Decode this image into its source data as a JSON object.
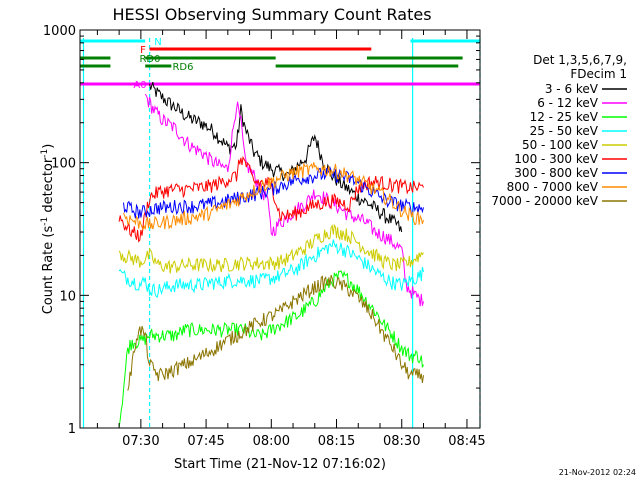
{
  "chart_data": {
    "type": "line",
    "title": "HESSI Observing Summary Count Rates",
    "xlabel": "Start Time (21-Nov-12 07:16:02)",
    "ylabel_main": "Count Rate (s",
    "ylabel_sup1": "-1",
    "ylabel_mid": " detector",
    "ylabel_sup2": "-1",
    "ylabel_end": ")",
    "y_scale": "log",
    "ylim": [
      1,
      1000
    ],
    "xlim_min": [
      16.0,
      108.0
    ],
    "x_ticks": [
      {
        "t": 30,
        "label": "07:30"
      },
      {
        "t": 45,
        "label": "07:45"
      },
      {
        "t": 60,
        "label": "08:00"
      },
      {
        "t": 75,
        "label": "08:15"
      },
      {
        "t": 90,
        "label": "08:30"
      },
      {
        "t": 105,
        "label": "08:45"
      }
    ],
    "y_ticks": [
      {
        "v": 1,
        "label": "1"
      },
      {
        "v": 10,
        "label": "10"
      },
      {
        "v": 100,
        "label": "100"
      },
      {
        "v": 1000,
        "label": "1000"
      }
    ],
    "legend_header": [
      "Det 1,3,5,6,7,9,",
      "FDecim 1"
    ],
    "legend_placement": "right",
    "series": [
      {
        "name": "3 - 6 keV",
        "color": "#000000",
        "x": [
          32,
          34,
          36,
          38,
          40,
          42,
          44,
          46,
          47,
          48,
          50,
          52,
          53,
          54,
          56,
          58,
          60,
          62,
          64,
          66,
          68,
          70,
          72,
          74,
          76,
          78,
          80,
          82,
          84,
          86,
          88,
          89,
          90
        ],
        "values": [
          380,
          330,
          290,
          260,
          230,
          210,
          200,
          180,
          170,
          155,
          130,
          135,
          250,
          180,
          120,
          100,
          90,
          85,
          80,
          95,
          110,
          160,
          100,
          80,
          70,
          62,
          55,
          50,
          45,
          40,
          36,
          34,
          30
        ]
      },
      {
        "name": "6 - 12 keV",
        "color": "#ff00ff",
        "x": [
          31,
          33,
          35,
          38,
          40,
          42,
          44,
          46,
          48,
          50,
          52,
          53,
          54,
          56,
          58,
          59,
          60,
          62,
          64,
          66,
          68,
          70,
          72,
          74,
          76,
          78,
          80,
          82,
          84,
          86,
          88,
          90,
          91,
          93,
          95
        ],
        "values": [
          320,
          250,
          210,
          180,
          150,
          130,
          120,
          105,
          95,
          90,
          280,
          200,
          100,
          80,
          60,
          55,
          30,
          35,
          40,
          45,
          50,
          60,
          55,
          50,
          45,
          40,
          38,
          35,
          30,
          28,
          25,
          22,
          12,
          10,
          9
        ]
      },
      {
        "name": "12 - 25 keV",
        "color": "#00ff00",
        "x": [
          25,
          26,
          27,
          28,
          30,
          32,
          34,
          36,
          38,
          40,
          42,
          44,
          46,
          48,
          50,
          52,
          54,
          56,
          58,
          60,
          62,
          64,
          66,
          68,
          70,
          72,
          74,
          76,
          78,
          80,
          82,
          84,
          86,
          88,
          90,
          92,
          94,
          95
        ],
        "values": [
          1,
          2,
          4,
          4.5,
          4.5,
          5,
          5,
          5,
          5,
          5.5,
          5.5,
          5.5,
          5.5,
          5.5,
          5.5,
          5.5,
          5.5,
          5,
          5,
          5.5,
          6,
          6.5,
          7,
          8,
          9,
          11,
          13,
          14,
          13,
          11,
          9,
          7.5,
          6,
          5,
          4,
          3.5,
          3.5,
          3
        ]
      },
      {
        "name": "25 - 50 keV",
        "color": "#00ffff",
        "x": [
          25,
          26,
          28,
          30,
          31,
          32,
          34,
          36,
          38,
          40,
          42,
          44,
          46,
          48,
          50,
          52,
          54,
          56,
          58,
          60,
          62,
          64,
          66,
          68,
          70,
          72,
          74,
          76,
          78,
          80,
          82,
          84,
          86,
          88,
          90,
          92,
          94,
          95
        ],
        "values": [
          15,
          14,
          13,
          12,
          13,
          11,
          11,
          11.5,
          12,
          12,
          12,
          12,
          12.5,
          12.5,
          13,
          13,
          13,
          13,
          13,
          13.5,
          14,
          15,
          16,
          18,
          20,
          22,
          24,
          23,
          21,
          19,
          17,
          15,
          13.5,
          12.5,
          12,
          13,
          14,
          15
        ]
      },
      {
        "name": "50 - 100 keV",
        "color": "#cccc00",
        "x": [
          25,
          26,
          28,
          30,
          32,
          34,
          36,
          38,
          40,
          42,
          44,
          46,
          48,
          50,
          52,
          54,
          56,
          58,
          60,
          62,
          64,
          66,
          68,
          70,
          72,
          74,
          76,
          78,
          80,
          82,
          84,
          86,
          88,
          90,
          92,
          94,
          95
        ],
        "values": [
          22,
          20,
          19,
          18,
          20,
          17,
          16.5,
          16.5,
          17,
          17,
          17,
          17,
          17,
          17,
          17.5,
          17.5,
          17.5,
          17.5,
          17.5,
          18,
          19,
          21,
          23,
          26,
          29,
          31,
          30,
          28,
          25,
          22,
          20,
          18,
          17,
          17,
          18,
          20,
          21
        ]
      },
      {
        "name": "100 - 300 keV",
        "color": "#ff0000",
        "x": [
          25,
          26,
          28,
          30,
          31,
          32,
          34,
          36,
          38,
          40,
          42,
          44,
          46,
          48,
          50,
          52,
          53,
          54,
          56,
          58,
          60,
          62,
          64,
          66,
          68,
          70,
          72,
          74,
          76,
          78,
          80,
          82,
          84,
          86,
          88,
          90,
          92,
          94,
          95
        ],
        "values": [
          40,
          35,
          30,
          28,
          40,
          55,
          60,
          62,
          63,
          63,
          64,
          65,
          67,
          70,
          75,
          80,
          110,
          100,
          72,
          70,
          70,
          40,
          40,
          42,
          45,
          48,
          50,
          52,
          50,
          48,
          65,
          70,
          72,
          70,
          68,
          66,
          65,
          65,
          65
        ]
      },
      {
        "name": "300 - 800 keV",
        "color": "#0000ff",
        "x": [
          26,
          28,
          30,
          32,
          34,
          36,
          38,
          40,
          42,
          44,
          46,
          48,
          50,
          52,
          54,
          56,
          58,
          60,
          62,
          64,
          66,
          68,
          70,
          72,
          74,
          76,
          78,
          80,
          82,
          84,
          86,
          88,
          90,
          92,
          94,
          95
        ],
        "values": [
          48,
          44,
          42,
          44,
          46,
          46,
          47,
          47,
          47,
          48,
          49,
          50,
          52,
          54,
          56,
          58,
          60,
          63,
          67,
          71,
          75,
          78,
          80,
          82,
          82,
          80,
          76,
          70,
          64,
          58,
          53,
          50,
          48,
          46,
          46,
          46
        ]
      },
      {
        "name": "800 - 7000 keV",
        "color": "#ff8c00",
        "x": [
          26,
          28,
          30,
          32,
          34,
          36,
          38,
          40,
          42,
          44,
          46,
          48,
          50,
          52,
          54,
          56,
          58,
          60,
          62,
          64,
          66,
          68,
          70,
          72,
          74,
          76,
          78,
          80,
          82,
          84,
          86,
          88,
          90,
          92,
          94,
          95
        ],
        "values": [
          40,
          37,
          35,
          34,
          35,
          36,
          37,
          38,
          39,
          40,
          42,
          45,
          48,
          52,
          57,
          62,
          67,
          72,
          77,
          82,
          86,
          88,
          90,
          90,
          88,
          85,
          80,
          74,
          68,
          62,
          56,
          50,
          44,
          40,
          38,
          37
        ]
      },
      {
        "name": "7000 - 20000 keV",
        "color": "#8b7500",
        "x": [
          27,
          28,
          29,
          30,
          31,
          32,
          34,
          36,
          38,
          40,
          42,
          44,
          46,
          48,
          50,
          52,
          54,
          56,
          58,
          60,
          62,
          64,
          66,
          68,
          70,
          72,
          74,
          76,
          78,
          80,
          82,
          84,
          86,
          88,
          90,
          92,
          94,
          95
        ],
        "values": [
          2,
          3,
          5,
          5.5,
          5,
          3,
          2.5,
          2.6,
          2.8,
          3,
          3.2,
          3.5,
          3.8,
          4.2,
          4.6,
          5,
          5.5,
          6,
          6.5,
          7,
          7.5,
          8.5,
          9.5,
          10.5,
          11.5,
          12.5,
          12.8,
          12,
          11,
          9.5,
          8,
          6.5,
          5,
          4,
          3,
          2.5,
          2.5,
          2.5
        ]
      }
    ],
    "flags": [
      {
        "label": "N",
        "color": "#00ffff",
        "segments": [
          [
            16,
            31
          ],
          [
            92,
            108
          ]
        ]
      },
      {
        "label": "F",
        "color": "#ff0000",
        "segments": [
          [
            32,
            83
          ]
        ]
      },
      {
        "label": "RD0",
        "color": "#008000",
        "segments": [
          [
            16,
            23
          ],
          [
            31,
            61
          ],
          [
            82,
            104
          ]
        ]
      },
      {
        "label": "RD6",
        "color": "#008000",
        "segments": [
          [
            16,
            23
          ],
          [
            31,
            37
          ],
          [
            61,
            103
          ]
        ]
      },
      {
        "label": "A0",
        "color": "#ff00ff",
        "segments": [
          [
            16,
            108
          ]
        ]
      }
    ],
    "vlines": [
      {
        "t": 16.8,
        "color": "#00ffff",
        "dashed": false
      },
      {
        "t": 32,
        "color": "#00ffff",
        "dashed": true
      },
      {
        "t": 92.5,
        "color": "#00ffff",
        "dashed": false
      },
      {
        "t": 108,
        "color": "#00ffff",
        "dashed": true
      }
    ]
  },
  "footer_date": "21-Nov-2012 02:24"
}
